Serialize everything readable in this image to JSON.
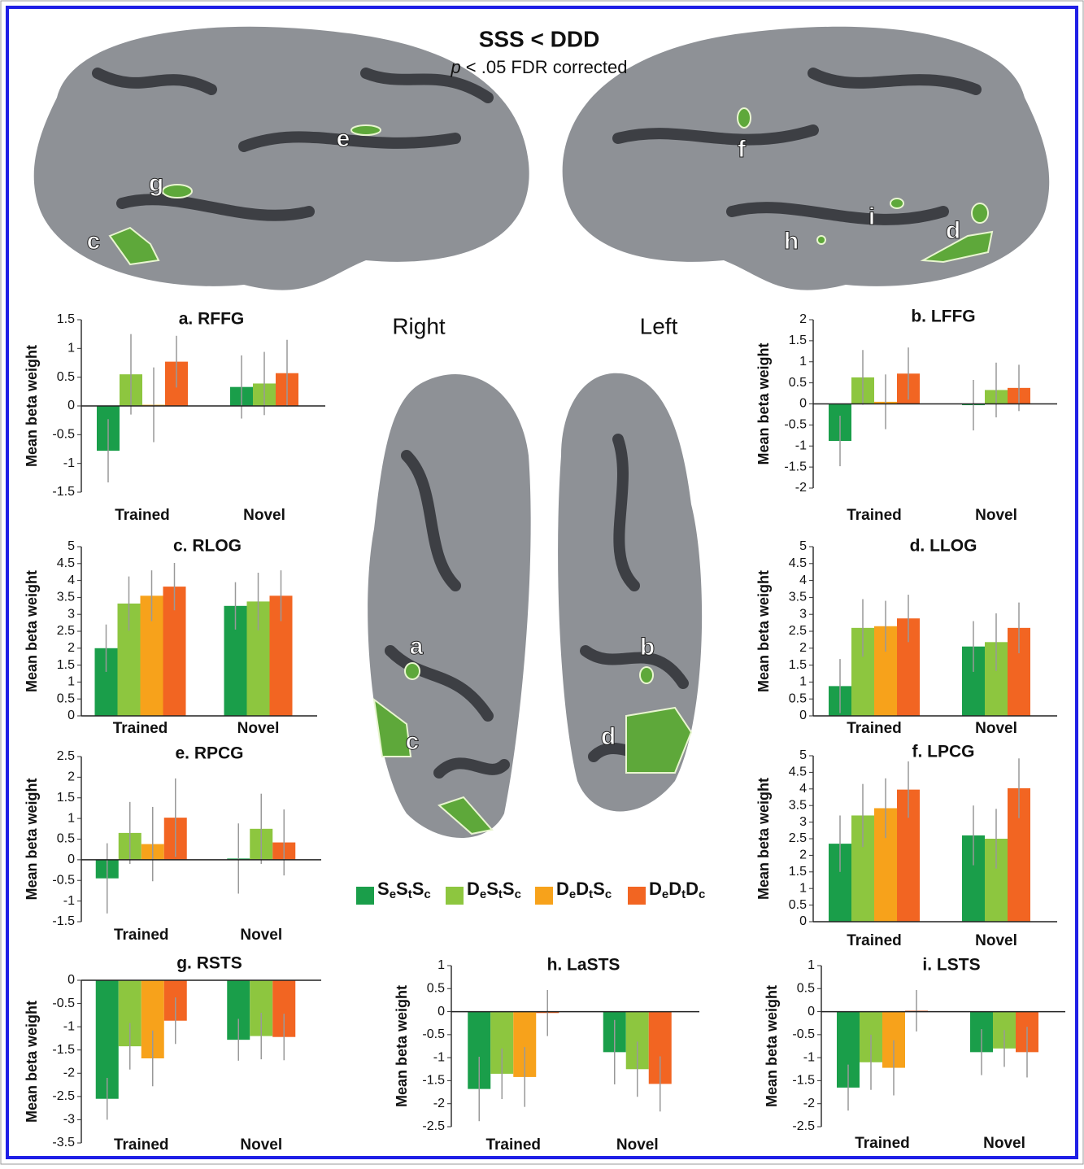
{
  "title": "SSS < DDD",
  "subtitle_symbol": "p",
  "subtitle_text": "< .05 FDR corrected",
  "hemispheres": [
    "Right",
    "Left"
  ],
  "brain_labels": [
    "e",
    "g",
    "c",
    "f",
    "i",
    "h",
    "d",
    "a",
    "c",
    "b",
    "d"
  ],
  "legend": [
    {
      "name": "SeStSc",
      "color": "#1a9e4a"
    },
    {
      "name": "DeStSc",
      "color": "#8dc63f"
    },
    {
      "name": "DeDtSc",
      "color": "#f7a21b"
    },
    {
      "name": "DeDtDc",
      "color": "#f26522"
    }
  ],
  "chart_data": [
    {
      "type": "bar",
      "title": "a. RFFG",
      "ylabel": "Mean beta weight",
      "categories": [
        "Trained",
        "Novel"
      ],
      "ylim": [
        -1.5,
        1.5
      ],
      "yticks": [
        -1.5,
        -1,
        -0.5,
        0,
        0.5,
        1,
        1.5
      ],
      "series": [
        {
          "color": "#1a9e4a",
          "values": [
            -0.78,
            0.33
          ],
          "errors": [
            0.55,
            0.55
          ]
        },
        {
          "color": "#8dc63f",
          "values": [
            0.55,
            0.39
          ],
          "errors": [
            0.7,
            0.55
          ]
        },
        {
          "color": "#f7a21b",
          "values": [
            0.02,
            null
          ],
          "errors": [
            0.65,
            null
          ]
        },
        {
          "color": "#f26522",
          "values": [
            0.77,
            0.57
          ],
          "errors": [
            0.45,
            0.58
          ]
        }
      ]
    },
    {
      "type": "bar",
      "title": "b. LFFG",
      "ylabel": "Mean beta weight",
      "categories": [
        "Trained",
        "Novel"
      ],
      "ylim": [
        -2,
        2
      ],
      "yticks": [
        -2,
        -1.5,
        -1,
        -0.5,
        0,
        0.5,
        1,
        1.5,
        2
      ],
      "series": [
        {
          "color": "#1a9e4a",
          "values": [
            -0.88,
            -0.03
          ],
          "errors": [
            0.6,
            0.6
          ]
        },
        {
          "color": "#8dc63f",
          "values": [
            0.63,
            0.33
          ],
          "errors": [
            0.65,
            0.65
          ]
        },
        {
          "color": "#f7a21b",
          "values": [
            0.05,
            null
          ],
          "errors": [
            0.65,
            null
          ]
        },
        {
          "color": "#f26522",
          "values": [
            0.72,
            0.38
          ],
          "errors": [
            0.62,
            0.55
          ]
        }
      ]
    },
    {
      "type": "bar",
      "title": "c. RLOG",
      "ylabel": "Mean beta weight",
      "categories": [
        "Trained",
        "Novel"
      ],
      "ylim": [
        0,
        5
      ],
      "yticks": [
        0,
        0.5,
        1,
        1.5,
        2,
        2.5,
        3,
        3.5,
        4,
        4.5,
        5
      ],
      "series": [
        {
          "color": "#1a9e4a",
          "values": [
            2,
            3.25
          ],
          "errors": [
            0.7,
            0.7
          ]
        },
        {
          "color": "#8dc63f",
          "values": [
            3.32,
            3.38
          ],
          "errors": [
            0.8,
            0.85
          ]
        },
        {
          "color": "#f7a21b",
          "values": [
            3.55,
            null
          ],
          "errors": [
            0.75,
            null
          ]
        },
        {
          "color": "#f26522",
          "values": [
            3.82,
            3.55
          ],
          "errors": [
            0.7,
            0.75
          ]
        }
      ]
    },
    {
      "type": "bar",
      "title": "d. LLOG",
      "ylabel": "Mean beta weight",
      "categories": [
        "Trained",
        "Novel"
      ],
      "ylim": [
        0,
        5
      ],
      "yticks": [
        0,
        0.5,
        1,
        1.5,
        2,
        2.5,
        3,
        3.5,
        4,
        4.5,
        5
      ],
      "series": [
        {
          "color": "#1a9e4a",
          "values": [
            0.88,
            2.05
          ],
          "errors": [
            0.8,
            0.75
          ]
        },
        {
          "color": "#8dc63f",
          "values": [
            2.6,
            2.18
          ],
          "errors": [
            0.85,
            0.85
          ]
        },
        {
          "color": "#f7a21b",
          "values": [
            2.65,
            null
          ],
          "errors": [
            0.75,
            null
          ]
        },
        {
          "color": "#f26522",
          "values": [
            2.88,
            2.6
          ],
          "errors": [
            0.7,
            0.75
          ]
        }
      ]
    },
    {
      "type": "bar",
      "title": "e. RPCG",
      "ylabel": "Mean beta weight",
      "categories": [
        "Trained",
        "Novel"
      ],
      "ylim": [
        -1.5,
        2.5
      ],
      "yticks": [
        -1.5,
        -1,
        -0.5,
        0,
        0.5,
        1,
        1.5,
        2,
        2.5
      ],
      "series": [
        {
          "color": "#1a9e4a",
          "values": [
            -0.45,
            0.03
          ],
          "errors": [
            0.85,
            0.85
          ]
        },
        {
          "color": "#8dc63f",
          "values": [
            0.65,
            0.75
          ],
          "errors": [
            0.75,
            0.85
          ]
        },
        {
          "color": "#f7a21b",
          "values": [
            0.38,
            null
          ],
          "errors": [
            0.9,
            null
          ]
        },
        {
          "color": "#f26522",
          "values": [
            1.02,
            0.42
          ],
          "errors": [
            0.95,
            0.8
          ]
        }
      ]
    },
    {
      "type": "bar",
      "title": "f. LPCG",
      "ylabel": "Mean beta weight",
      "categories": [
        "Trained",
        "Novel"
      ],
      "ylim": [
        0,
        5
      ],
      "yticks": [
        0,
        0.5,
        1,
        1.5,
        2,
        2.5,
        3,
        3.5,
        4,
        4.5,
        5
      ],
      "series": [
        {
          "color": "#1a9e4a",
          "values": [
            2.35,
            2.6
          ],
          "errors": [
            0.85,
            0.9
          ]
        },
        {
          "color": "#8dc63f",
          "values": [
            3.2,
            2.5
          ],
          "errors": [
            0.95,
            0.9
          ]
        },
        {
          "color": "#f7a21b",
          "values": [
            3.42,
            null
          ],
          "errors": [
            0.9,
            null
          ]
        },
        {
          "color": "#f26522",
          "values": [
            3.98,
            4.02
          ],
          "errors": [
            0.85,
            0.9
          ]
        }
      ]
    },
    {
      "type": "bar",
      "title": "g. RSTS",
      "ylabel": "Mean beta weight",
      "categories": [
        "Trained",
        "Novel"
      ],
      "ylim": [
        -3.5,
        0
      ],
      "yticks": [
        -3.5,
        -3,
        -2.5,
        -2,
        -1.5,
        -1,
        -0.5,
        0
      ],
      "series": [
        {
          "color": "#1a9e4a",
          "values": [
            -2.55,
            -1.28
          ],
          "errors": [
            0.45,
            0.45
          ]
        },
        {
          "color": "#8dc63f",
          "values": [
            -1.42,
            -1.2
          ],
          "errors": [
            0.5,
            0.5
          ]
        },
        {
          "color": "#f7a21b",
          "values": [
            -1.68,
            null
          ],
          "errors": [
            0.6,
            null
          ]
        },
        {
          "color": "#f26522",
          "values": [
            -0.87,
            -1.22
          ],
          "errors": [
            0.5,
            0.5
          ]
        }
      ]
    },
    {
      "type": "bar",
      "title": "h. LaSTS",
      "ylabel": "Mean beta weight",
      "categories": [
        "Trained",
        "Novel"
      ],
      "ylim": [
        -2.5,
        1
      ],
      "yticks": [
        -2.5,
        -2,
        -1.5,
        -1,
        -0.5,
        0,
        0.5,
        1
      ],
      "series": [
        {
          "color": "#1a9e4a",
          "values": [
            -1.68,
            -0.88
          ],
          "errors": [
            0.7,
            0.7
          ]
        },
        {
          "color": "#8dc63f",
          "values": [
            -1.35,
            -1.25
          ],
          "errors": [
            0.55,
            0.6
          ]
        },
        {
          "color": "#f7a21b",
          "values": [
            -1.42,
            null
          ],
          "errors": [
            0.65,
            null
          ]
        },
        {
          "color": "#f26522",
          "values": [
            -0.03,
            -1.57
          ],
          "errors": [
            0.5,
            0.6
          ]
        }
      ]
    },
    {
      "type": "bar",
      "title": "i. LSTS",
      "ylabel": "Mean beta weight",
      "categories": [
        "Trained",
        "Novel"
      ],
      "ylim": [
        -2.5,
        1
      ],
      "yticks": [
        -2.5,
        -2,
        -1.5,
        -1,
        -0.5,
        0,
        0.5,
        1
      ],
      "series": [
        {
          "color": "#1a9e4a",
          "values": [
            -1.65,
            -0.88
          ],
          "errors": [
            0.5,
            0.5
          ]
        },
        {
          "color": "#8dc63f",
          "values": [
            -1.1,
            -0.8
          ],
          "errors": [
            0.6,
            0.4
          ]
        },
        {
          "color": "#f7a21b",
          "values": [
            -1.22,
            null
          ],
          "errors": [
            0.6,
            null
          ]
        },
        {
          "color": "#f26522",
          "values": [
            0.02,
            -0.88
          ],
          "errors": [
            0.45,
            0.55
          ]
        }
      ]
    }
  ]
}
